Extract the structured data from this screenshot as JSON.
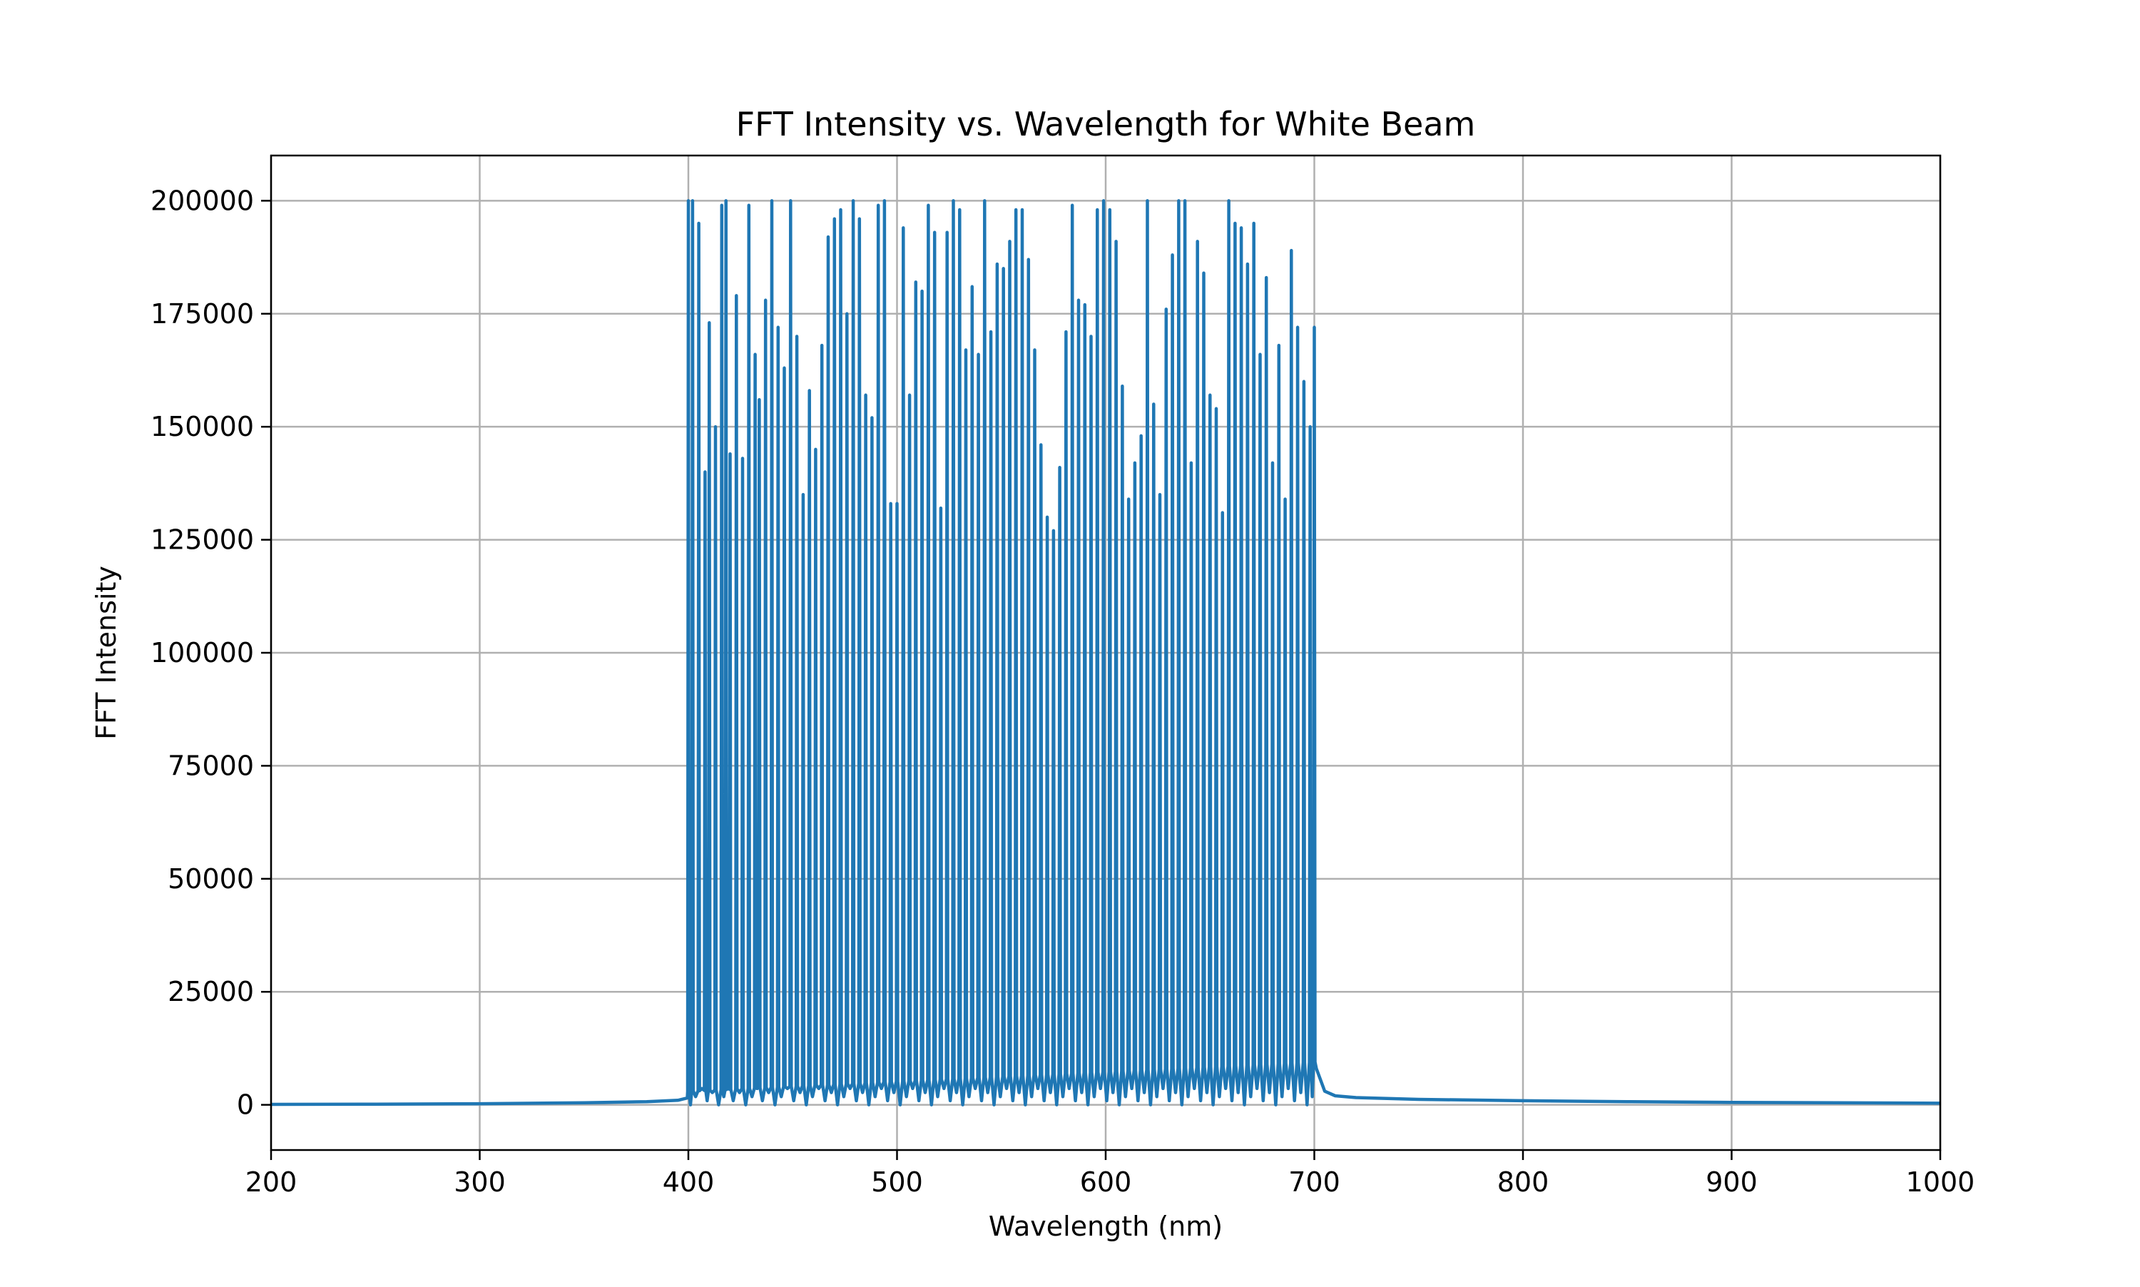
{
  "chart_data": {
    "type": "line",
    "title": "FFT Intensity vs. Wavelength for White Beam",
    "xlabel": "Wavelength (nm)",
    "ylabel": "FFT Intensity",
    "xlim": [
      200,
      1000
    ],
    "ylim": [
      -10000,
      210000
    ],
    "xticks": [
      200,
      300,
      400,
      500,
      600,
      700,
      800,
      900,
      1000
    ],
    "yticks": [
      0,
      25000,
      50000,
      75000,
      100000,
      125000,
      150000,
      175000,
      200000
    ],
    "grid": true,
    "legend": "none",
    "series": [
      {
        "color": "#1f77b4",
        "baseline": {
          "x": [
            200,
            250,
            300,
            350,
            380,
            395,
            399.5,
            701,
            705,
            710,
            720,
            750,
            800,
            850,
            900,
            950,
            1000
          ],
          "y": [
            100,
            150,
            250,
            450,
            700,
            1000,
            1500,
            8000,
            3000,
            2000,
            1600,
            1200,
            900,
            700,
            550,
            450,
            350
          ]
        },
        "peaks": {
          "x": [
            400,
            402,
            405,
            408,
            410,
            413,
            416,
            418,
            420,
            423,
            426,
            429,
            432,
            434,
            437,
            440,
            443,
            446,
            449,
            452,
            455,
            458,
            461,
            464,
            467,
            470,
            473,
            476,
            479,
            482,
            485,
            488,
            491,
            494,
            497,
            500,
            503,
            506,
            509,
            512,
            515,
            518,
            521,
            524,
            527,
            530,
            533,
            536,
            539,
            542,
            545,
            548,
            551,
            554,
            557,
            560,
            563,
            566,
            569,
            572,
            575,
            578,
            581,
            584,
            587,
            590,
            593,
            596,
            599,
            602,
            605,
            608,
            611,
            614,
            617,
            620,
            623,
            626,
            629,
            632,
            635,
            638,
            641,
            644,
            647,
            650,
            653,
            656,
            659,
            662,
            665,
            668,
            671,
            674,
            677,
            680,
            683,
            686,
            689,
            692,
            695,
            698,
            700
          ],
          "y": [
            200000,
            200000,
            195000,
            140000,
            173000,
            150000,
            199000,
            200000,
            144000,
            179000,
            143000,
            199000,
            166000,
            156000,
            178000,
            200000,
            172000,
            163000,
            200000,
            170000,
            135000,
            158000,
            145000,
            168000,
            192000,
            196000,
            198000,
            175000,
            200000,
            196000,
            157000,
            152000,
            199000,
            200000,
            133000,
            133000,
            194000,
            157000,
            182000,
            180000,
            199000,
            193000,
            132000,
            193000,
            200000,
            198000,
            167000,
            181000,
            166000,
            200000,
            171000,
            186000,
            185000,
            191000,
            198000,
            198000,
            187000,
            167000,
            146000,
            130000,
            127000,
            141000,
            171000,
            199000,
            178000,
            177000,
            170000,
            198000,
            200000,
            198000,
            191000,
            159000,
            134000,
            142000,
            148000,
            200000,
            155000,
            135000,
            176000,
            188000,
            200000,
            200000,
            142000,
            191000,
            184000,
            157000,
            154000,
            131000,
            200000,
            195000,
            194000,
            186000,
            195000,
            166000,
            183000,
            142000,
            168000,
            134000,
            189000,
            172000,
            160000,
            150000,
            172000
          ]
        }
      }
    ]
  }
}
